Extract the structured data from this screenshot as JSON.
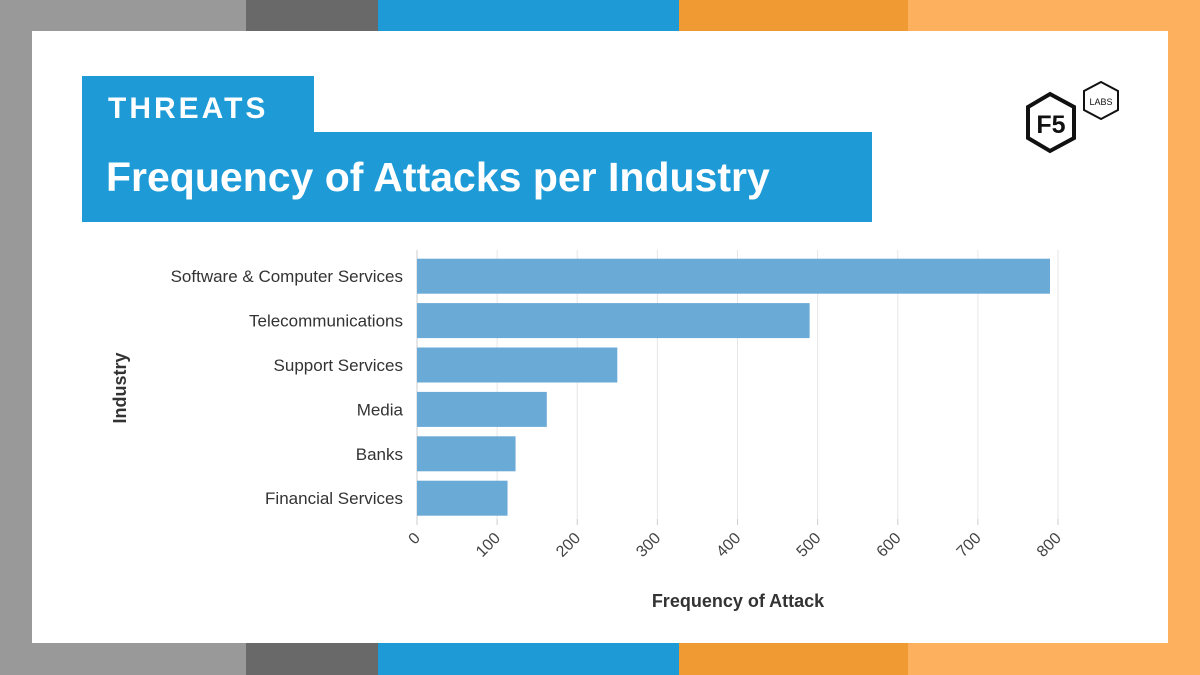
{
  "header": {
    "tag": "THREATS",
    "title": "Frequency of Attacks per Industry"
  },
  "logo": {
    "main": "F5",
    "sub": "LABS",
    "icon": "f5-labs-logo"
  },
  "colors": {
    "accent_blue": "#1e9bd7",
    "bar": "#6aaad6",
    "band": [
      "#999999",
      "#696969",
      "#1e9bd7",
      "#f09a33",
      "#fdb15e"
    ]
  },
  "chart_data": {
    "type": "bar",
    "orientation": "horizontal",
    "categories": [
      "Software & Computer Services",
      "Telecommunications",
      "Support Services",
      "Media",
      "Banks",
      "Financial Services"
    ],
    "values": [
      790,
      490,
      250,
      162,
      123,
      113
    ],
    "xlabel": "Frequency of Attack",
    "ylabel": "Industry",
    "xlim": [
      0,
      800
    ],
    "xticks": [
      "0",
      "100",
      "200",
      "300",
      "400",
      "500",
      "600",
      "700",
      "800"
    ],
    "grid": true,
    "legend": "none"
  }
}
